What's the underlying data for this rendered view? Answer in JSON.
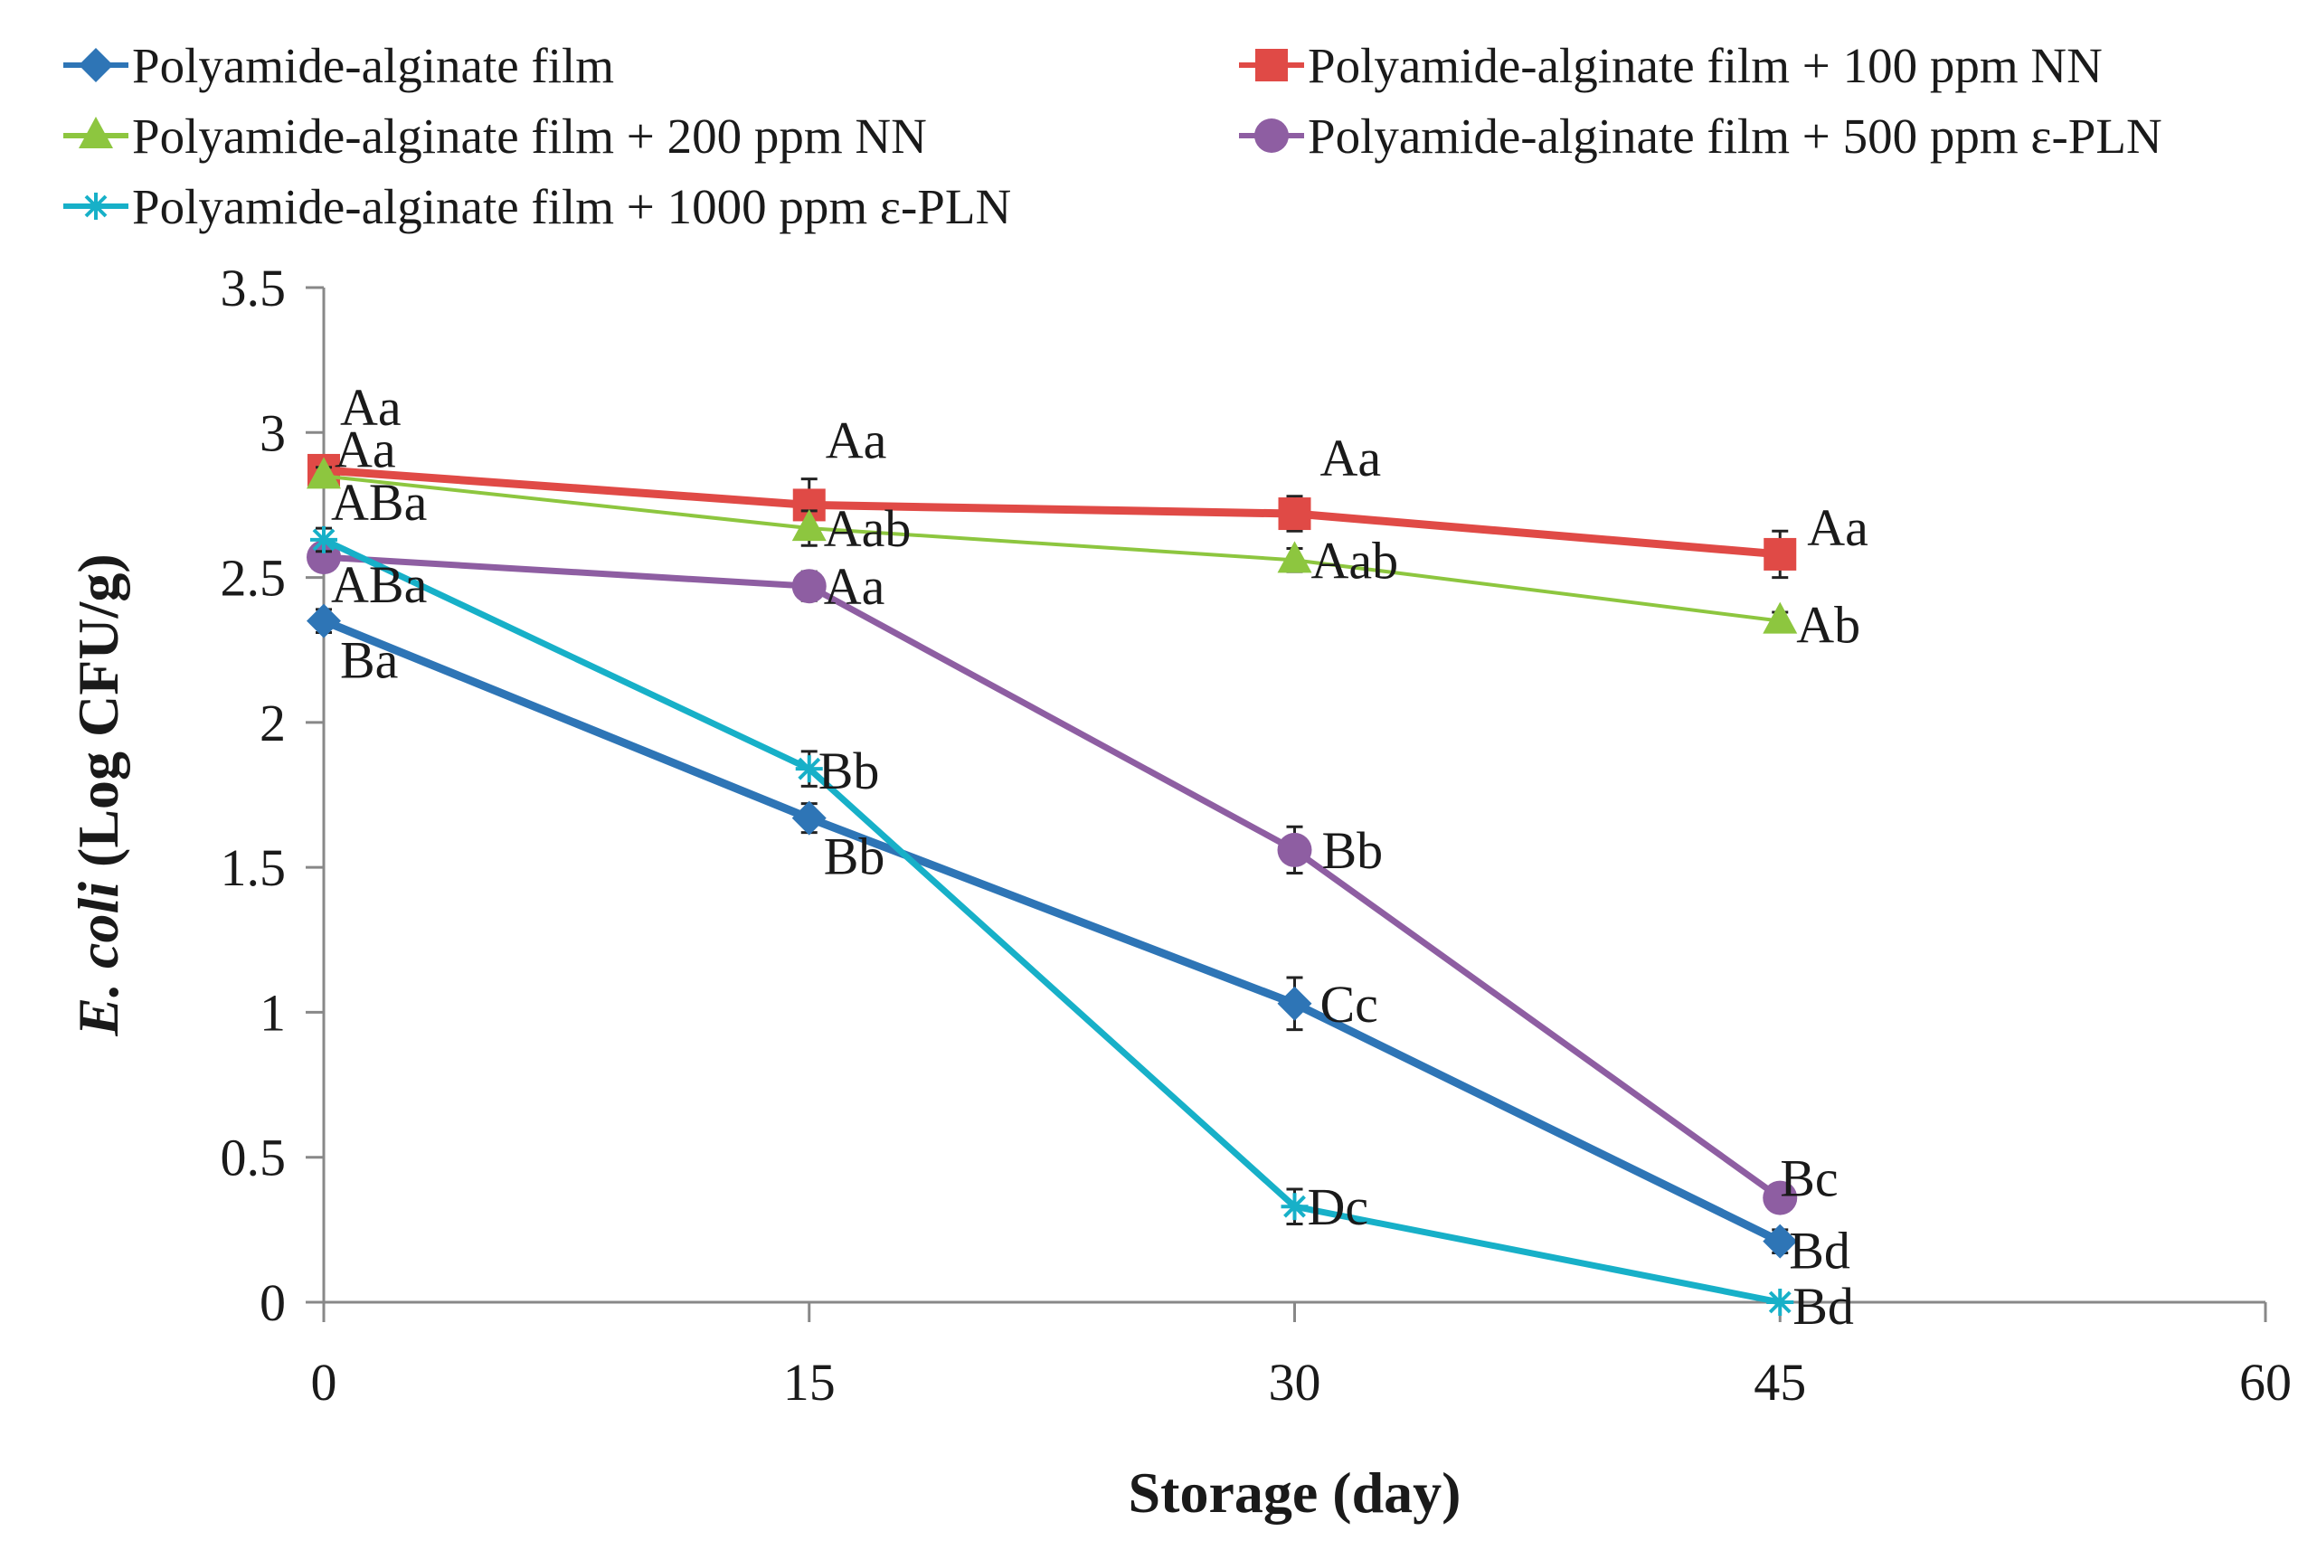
{
  "chart_data": {
    "type": "line",
    "title": "",
    "xlabel": "Storage (day)",
    "ylabel_italic": "E. coli",
    "ylabel_rest": " (Log CFU/g)",
    "x": [
      0,
      15,
      30,
      45
    ],
    "xlim": [
      0,
      60
    ],
    "ylim": [
      0,
      3.5
    ],
    "xticks": [
      "0",
      "15",
      "30",
      "45",
      "60"
    ],
    "yticks": [
      "0",
      "0.5",
      "1",
      "1.5",
      "2",
      "2.5",
      "3",
      "3.5"
    ],
    "grid": false,
    "legend": "top",
    "series": [
      {
        "name": "Polyamide-alginate film",
        "color": "#2e75b6",
        "marker": "diamond",
        "values": [
          2.35,
          1.67,
          1.03,
          0.21
        ],
        "errors": [
          0.04,
          0.05,
          0.09,
          0.04
        ],
        "labels": [
          "Ba",
          "Bb",
          "Cc",
          "Bd"
        ]
      },
      {
        "name": "Polyamide-alginate film + 100 ppm NN",
        "color": "#e04a46",
        "marker": "square",
        "values": [
          2.87,
          2.75,
          2.72,
          2.58
        ],
        "errors": [
          0.05,
          0.09,
          0.06,
          0.08
        ],
        "labels": [
          "Aa",
          "Aa",
          "Aa",
          "Aa"
        ]
      },
      {
        "name": "Polyamide-alginate film + 200 ppm NN",
        "color": "#8dc63f",
        "marker": "triangle",
        "values": [
          2.85,
          2.67,
          2.56,
          2.35
        ],
        "errors": [
          0.03,
          0.06,
          0.04,
          0.03
        ],
        "labels": [
          "Aa",
          "Aab",
          "Aab",
          "Ab"
        ]
      },
      {
        "name": "Polyamide-alginate film + 500 ppm ε-PLN",
        "color": "#8e5ea2",
        "marker": "circle",
        "values": [
          2.57,
          2.47,
          1.56,
          0.36
        ],
        "errors": [
          0.04,
          0.05,
          0.08,
          0.03
        ],
        "labels": [
          "ABa",
          "Aa",
          "Bb",
          "Bc"
        ]
      },
      {
        "name": "Polyamide-alginate film + 1000 ppm ε-PLN",
        "color": "#17b0c8",
        "marker": "asterisk",
        "values": [
          2.63,
          1.84,
          0.33,
          0.0
        ],
        "errors": [
          0.04,
          0.06,
          0.06,
          0.0
        ],
        "labels": [
          "ABa",
          "Bb",
          "Dc",
          "Bd"
        ]
      }
    ]
  }
}
